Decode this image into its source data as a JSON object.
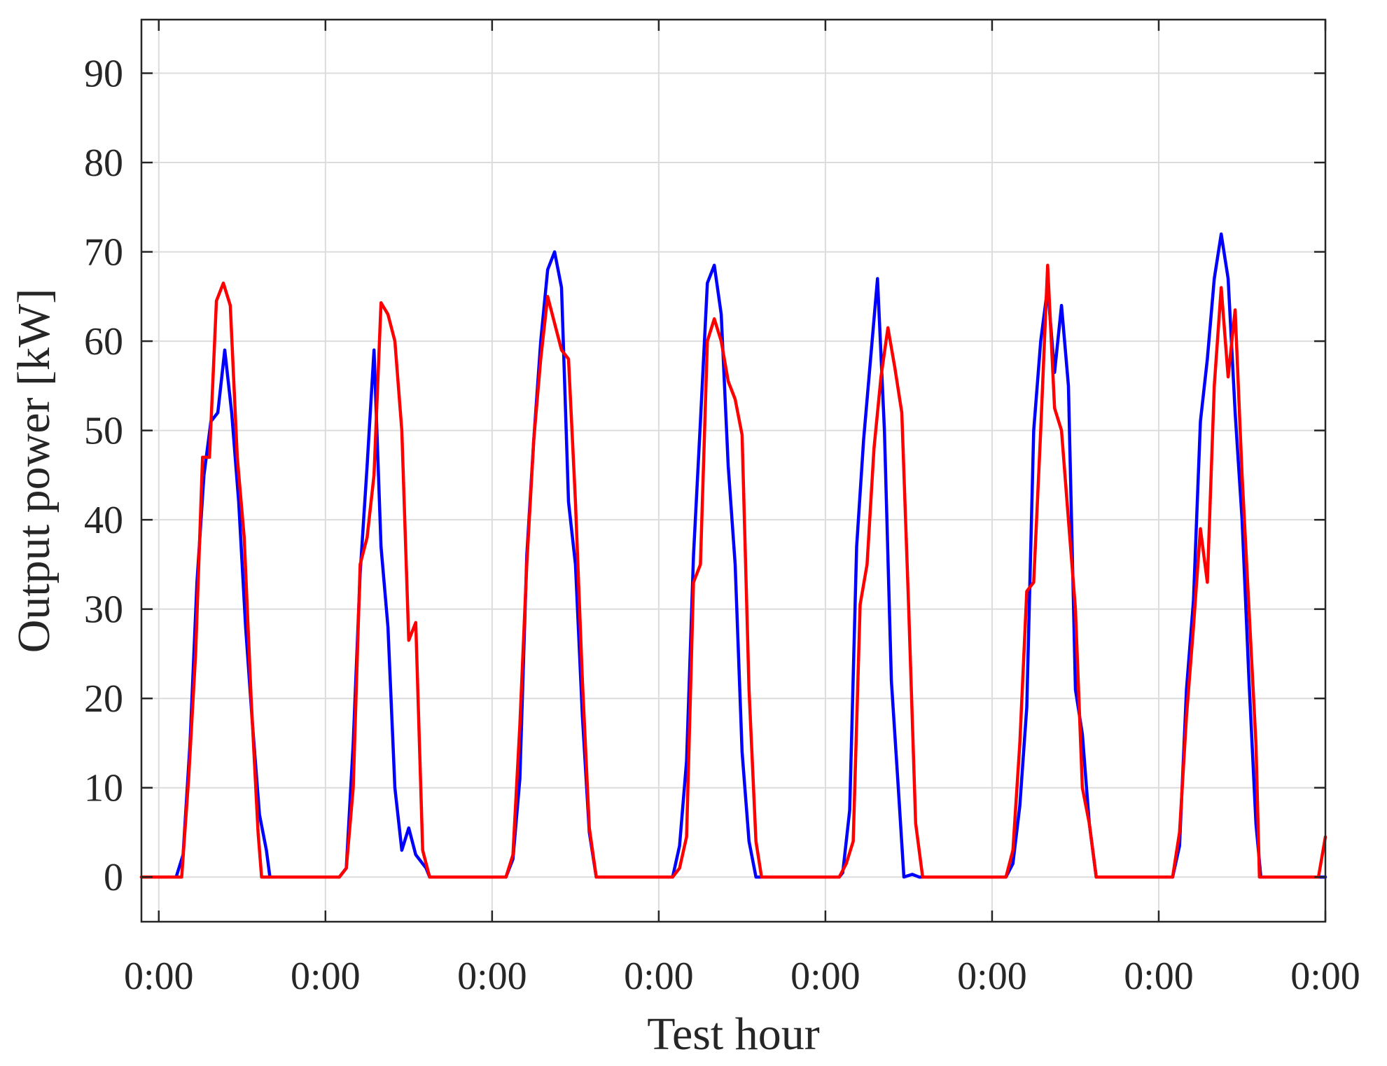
{
  "chart_data": {
    "type": "line",
    "xlabel": "Test hour",
    "ylabel": "Output power [kW]",
    "x_tick_labels": [
      "0:00",
      "0:00",
      "0:00",
      "0:00",
      "0:00",
      "0:00",
      "0:00",
      "0:00"
    ],
    "x_tick_hours": [
      0,
      24,
      48,
      72,
      96,
      120,
      144,
      168
    ],
    "xlim": [
      -2.5,
      168
    ],
    "yticks": [
      0,
      10,
      20,
      30,
      40,
      50,
      60,
      70,
      80,
      90
    ],
    "ylim": [
      -5,
      96
    ],
    "grid": true,
    "series": [
      {
        "color": "#0000ff",
        "points": [
          [
            -2.5,
            0
          ],
          [
            2.5,
            0
          ],
          [
            3.5,
            2.5
          ],
          [
            4.5,
            15
          ],
          [
            5.5,
            33
          ],
          [
            6.5,
            45
          ],
          [
            7.5,
            51
          ],
          [
            8.5,
            52
          ],
          [
            9.5,
            59
          ],
          [
            10.5,
            52
          ],
          [
            11.5,
            42
          ],
          [
            12.5,
            28
          ],
          [
            13.5,
            17
          ],
          [
            14.5,
            7
          ],
          [
            15.5,
            3
          ],
          [
            16,
            0
          ],
          [
            26,
            0
          ],
          [
            27,
            1
          ],
          [
            28,
            15
          ],
          [
            29,
            34
          ],
          [
            30,
            46
          ],
          [
            31,
            59
          ],
          [
            32,
            37
          ],
          [
            33,
            28
          ],
          [
            34,
            10
          ],
          [
            35,
            3
          ],
          [
            36,
            5.5
          ],
          [
            37,
            2.5
          ],
          [
            38.5,
            1
          ],
          [
            39,
            0
          ],
          [
            50,
            0
          ],
          [
            51,
            2
          ],
          [
            52,
            11
          ],
          [
            53,
            36
          ],
          [
            54,
            49
          ],
          [
            55,
            60
          ],
          [
            56,
            68
          ],
          [
            57,
            70
          ],
          [
            58,
            66
          ],
          [
            59,
            42
          ],
          [
            60,
            35
          ],
          [
            61,
            18
          ],
          [
            62,
            5
          ],
          [
            63,
            0
          ],
          [
            74,
            0
          ],
          [
            75,
            3.5
          ],
          [
            76,
            13
          ],
          [
            77,
            36
          ],
          [
            78,
            51
          ],
          [
            79,
            66.5
          ],
          [
            80,
            68.5
          ],
          [
            81,
            63
          ],
          [
            82,
            46
          ],
          [
            83,
            35
          ],
          [
            84,
            14
          ],
          [
            85,
            4
          ],
          [
            86,
            0
          ],
          [
            98,
            0
          ],
          [
            98.5,
            0.5
          ],
          [
            99.5,
            7.5
          ],
          [
            100.5,
            37
          ],
          [
            101.5,
            49
          ],
          [
            102.5,
            58
          ],
          [
            103.5,
            67
          ],
          [
            104.5,
            50
          ],
          [
            105.5,
            22
          ],
          [
            106.5,
            10
          ],
          [
            107.3,
            0
          ],
          [
            108.5,
            0.3
          ],
          [
            109.5,
            0
          ],
          [
            122,
            0
          ],
          [
            123,
            1.5
          ],
          [
            124,
            8
          ],
          [
            125,
            19
          ],
          [
            126,
            50
          ],
          [
            127,
            60
          ],
          [
            128,
            66
          ],
          [
            129,
            56.5
          ],
          [
            130,
            64
          ],
          [
            131,
            55
          ],
          [
            132,
            21
          ],
          [
            133,
            16
          ],
          [
            134,
            6
          ],
          [
            135,
            0
          ],
          [
            146,
            0
          ],
          [
            147,
            3.5
          ],
          [
            148,
            21
          ],
          [
            149,
            31
          ],
          [
            150,
            51
          ],
          [
            151,
            58
          ],
          [
            152,
            67
          ],
          [
            153,
            72
          ],
          [
            154,
            67
          ],
          [
            155,
            52
          ],
          [
            156,
            40
          ],
          [
            157,
            22
          ],
          [
            158,
            6
          ],
          [
            158.7,
            0
          ],
          [
            168,
            0
          ]
        ]
      },
      {
        "color": "#ff0000",
        "points": [
          [
            -2.5,
            0
          ],
          [
            3.3,
            0
          ],
          [
            4.3,
            11
          ],
          [
            5.3,
            25
          ],
          [
            6.3,
            47
          ],
          [
            7.3,
            47
          ],
          [
            8.3,
            64.5
          ],
          [
            9.3,
            66.5
          ],
          [
            10.3,
            64
          ],
          [
            11.3,
            47
          ],
          [
            12.3,
            38
          ],
          [
            13.3,
            20
          ],
          [
            14.3,
            5
          ],
          [
            14.8,
            0
          ],
          [
            26,
            0
          ],
          [
            27,
            1
          ],
          [
            28,
            10
          ],
          [
            29,
            35
          ],
          [
            30,
            38
          ],
          [
            31,
            45
          ],
          [
            32,
            64.3
          ],
          [
            33,
            63
          ],
          [
            34,
            60
          ],
          [
            35,
            50
          ],
          [
            36,
            26.5
          ],
          [
            37,
            28.5
          ],
          [
            38,
            3
          ],
          [
            39,
            0
          ],
          [
            50,
            0
          ],
          [
            51,
            2.5
          ],
          [
            52,
            17
          ],
          [
            53,
            35
          ],
          [
            54,
            49
          ],
          [
            55,
            58
          ],
          [
            56,
            65
          ],
          [
            57,
            62
          ],
          [
            58,
            59
          ],
          [
            59,
            58
          ],
          [
            60,
            42
          ],
          [
            61,
            22
          ],
          [
            62,
            5.5
          ],
          [
            63,
            0
          ],
          [
            74,
            0
          ],
          [
            75,
            1
          ],
          [
            76,
            4.5
          ],
          [
            77,
            33
          ],
          [
            78,
            35
          ],
          [
            79,
            60
          ],
          [
            80,
            62.5
          ],
          [
            81,
            60
          ],
          [
            82,
            55.5
          ],
          [
            83,
            53.5
          ],
          [
            84,
            49.5
          ],
          [
            85,
            21
          ],
          [
            86,
            4
          ],
          [
            86.8,
            0
          ],
          [
            98,
            0
          ],
          [
            99,
            1.5
          ],
          [
            100,
            4
          ],
          [
            101,
            30.5
          ],
          [
            102,
            35
          ],
          [
            103,
            48
          ],
          [
            104,
            56
          ],
          [
            105,
            61.5
          ],
          [
            106,
            57
          ],
          [
            107,
            52
          ],
          [
            108,
            30
          ],
          [
            109,
            6
          ],
          [
            110,
            0
          ],
          [
            122,
            0
          ],
          [
            123,
            3
          ],
          [
            124,
            15
          ],
          [
            125,
            32
          ],
          [
            126,
            33
          ],
          [
            127,
            50
          ],
          [
            128,
            68.5
          ],
          [
            129,
            52.5
          ],
          [
            130,
            50
          ],
          [
            131,
            40
          ],
          [
            132,
            30
          ],
          [
            133,
            10
          ],
          [
            134,
            6
          ],
          [
            135,
            0
          ],
          [
            146,
            0
          ],
          [
            147,
            5
          ],
          [
            148,
            18
          ],
          [
            149,
            28
          ],
          [
            150,
            39
          ],
          [
            151,
            33
          ],
          [
            152,
            55
          ],
          [
            153,
            66
          ],
          [
            154,
            56
          ],
          [
            155,
            63.5
          ],
          [
            156,
            45
          ],
          [
            157,
            30
          ],
          [
            158,
            15
          ],
          [
            158.5,
            0
          ],
          [
            167,
            0
          ],
          [
            168,
            4.5
          ]
        ]
      }
    ]
  }
}
